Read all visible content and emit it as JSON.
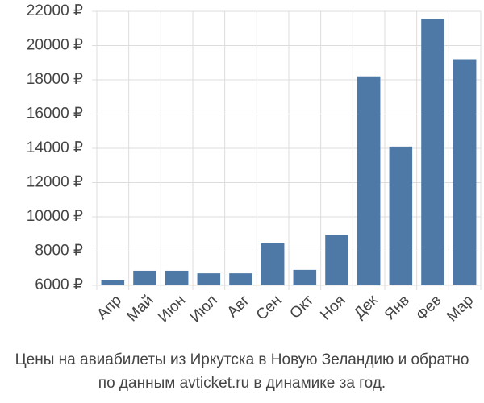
{
  "chart_data": {
    "type": "bar",
    "title": "Цены на авиабилеты из Иркутска в Новую Зеландию и обратно",
    "subtitle": "по данным avticket.ru в динамике за год.",
    "categories": [
      "Апр",
      "Май",
      "Июн",
      "Июл",
      "Авг",
      "Сен",
      "Окт",
      "Ноя",
      "Дек",
      "Янв",
      "Фев",
      "Мар"
    ],
    "values": [
      6300,
      6850,
      6850,
      6700,
      6700,
      8450,
      6900,
      8950,
      18200,
      14100,
      21550,
      19200
    ],
    "color": "#4e79a7",
    "ylim": [
      6000,
      22000
    ],
    "yticks": [
      {
        "value": 6000,
        "label": "6000 ₽"
      },
      {
        "value": 8000,
        "label": "8000 ₽"
      },
      {
        "value": 10000,
        "label": "10000 ₽"
      },
      {
        "value": 12000,
        "label": "12000 ₽"
      },
      {
        "value": 14000,
        "label": "14000 ₽"
      },
      {
        "value": 16000,
        "label": "16000 ₽"
      },
      {
        "value": 18000,
        "label": "18000 ₽"
      },
      {
        "value": 20000,
        "label": "20000 ₽"
      },
      {
        "value": 22000,
        "label": "22000 ₽"
      }
    ],
    "grid": true
  }
}
